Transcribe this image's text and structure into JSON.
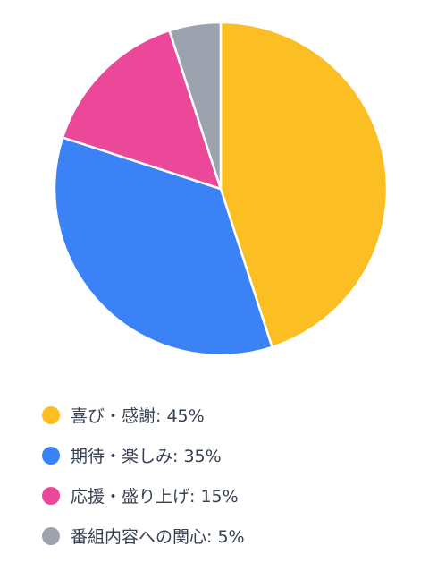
{
  "chart_data": {
    "type": "pie",
    "start_angle_deg": 0,
    "direction": "clockwise",
    "slice_border_color": "#ffffff",
    "slices": [
      {
        "label": "喜び・感謝: 45%",
        "name": "喜び・感謝",
        "value": 45,
        "color": "#fbbf24"
      },
      {
        "label": "期待・楽しみ: 35%",
        "name": "期待・楽しみ",
        "value": 35,
        "color": "#3b82f6"
      },
      {
        "label": "応援・盛り上げ: 15%",
        "name": "応援・盛り上げ",
        "value": 15,
        "color": "#ec4899"
      },
      {
        "label": "番組内容への関心: 5%",
        "name": "番組内容への関心",
        "value": 5,
        "color": "#9ca3af"
      }
    ],
    "legend_position": "bottom-left"
  }
}
